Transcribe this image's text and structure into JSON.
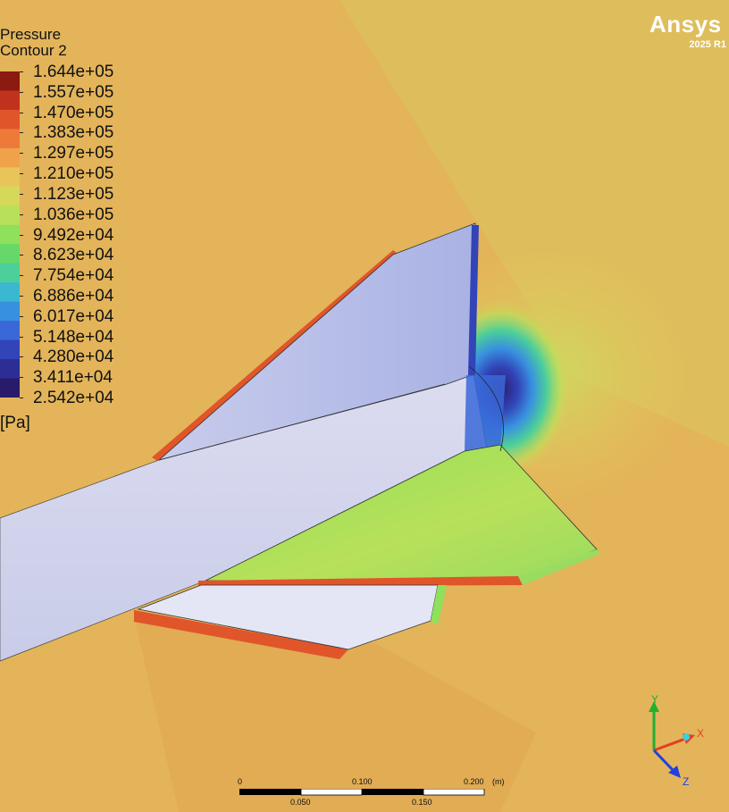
{
  "legend": {
    "title_line1": "Pressure",
    "title_line2": "Contour 2",
    "unit": "[Pa]",
    "levels": [
      "1.644e+05",
      "1.557e+05",
      "1.470e+05",
      "1.383e+05",
      "1.297e+05",
      "1.210e+05",
      "1.123e+05",
      "1.036e+05",
      "9.492e+04",
      "8.623e+04",
      "7.754e+04",
      "6.886e+04",
      "6.017e+04",
      "5.148e+04",
      "4.280e+04",
      "3.411e+04",
      "2.542e+04"
    ],
    "colors": [
      "#8b1a10",
      "#c0321c",
      "#e0552a",
      "#ee7a3a",
      "#f0a24a",
      "#e8c45a",
      "#d6d85a",
      "#b8e05a",
      "#8fe05a",
      "#66d86a",
      "#4ccf9a",
      "#3ab8d0",
      "#3890e0",
      "#3a68d8",
      "#3244b8",
      "#2c2e96",
      "#2a1a6a"
    ]
  },
  "branding": {
    "logo": "Ansys",
    "version": "2025 R1"
  },
  "scale_bar": {
    "unit": "(m)",
    "top_labels": [
      "0",
      "0.100",
      "0.200"
    ],
    "bottom_labels": [
      "0.050",
      "0.150"
    ]
  },
  "axes": {
    "x_label": "X",
    "y_label": "Y",
    "z_label": "Z",
    "x_color": "#e04020",
    "y_color": "#20b030",
    "z_color": "#2040e0"
  }
}
